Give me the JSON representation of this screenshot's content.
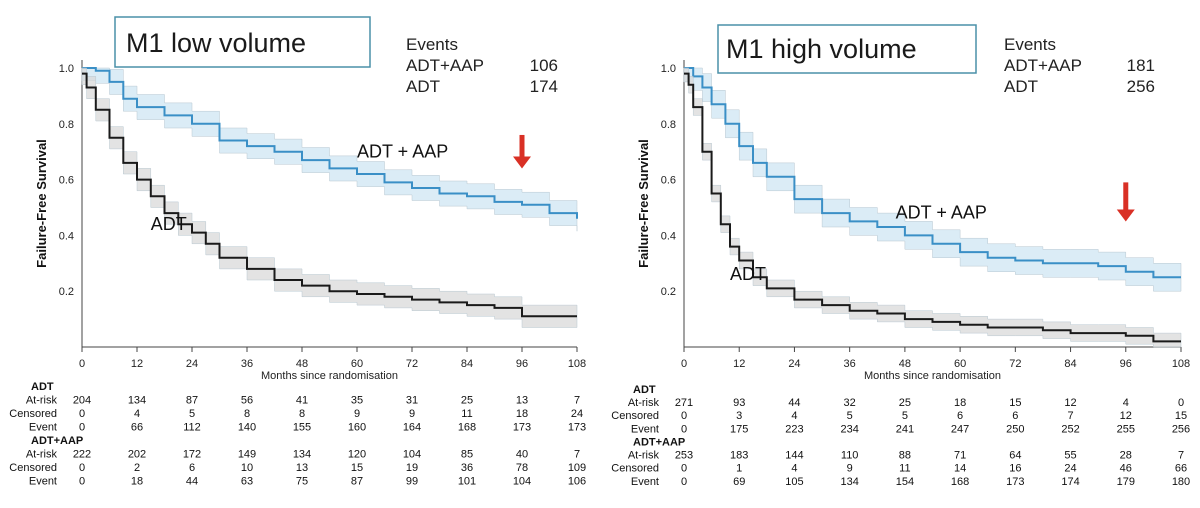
{
  "chart_data": [
    {
      "type": "line",
      "title": "M1 low volume",
      "ylabel": "Failure-Free Survival",
      "xlabel": "Months since randomisation",
      "xlim": [
        0,
        108
      ],
      "ylim": [
        0,
        1.0
      ],
      "xticks": [
        0,
        12,
        24,
        36,
        48,
        60,
        72,
        84,
        96,
        108
      ],
      "yticks": [
        0.2,
        0.4,
        0.6,
        0.8,
        1.0
      ],
      "yticklabels": [
        "0.2",
        "0.4",
        "0.6",
        "0.8",
        "1.0"
      ],
      "events_header": "Events",
      "events": [
        {
          "label": "ADT+AAP",
          "value": "106"
        },
        {
          "label": "ADT",
          "value": "174"
        }
      ],
      "series": [
        {
          "name": "ADT + AAP",
          "color": "#3a8fc6",
          "band_color": "#cfe5f3",
          "x": [
            0,
            3,
            6,
            9,
            12,
            18,
            24,
            30,
            36,
            42,
            48,
            54,
            60,
            66,
            72,
            78,
            84,
            90,
            96,
            102,
            108
          ],
          "y": [
            1.0,
            0.99,
            0.95,
            0.89,
            0.86,
            0.83,
            0.8,
            0.74,
            0.72,
            0.7,
            0.67,
            0.64,
            0.62,
            0.59,
            0.57,
            0.55,
            0.54,
            0.52,
            0.51,
            0.48,
            0.46
          ],
          "band_width": 0.045
        },
        {
          "name": "ADT",
          "color": "#1a1a1a",
          "band_color": "#d9d9d9",
          "x": [
            0,
            1,
            3,
            6,
            9,
            12,
            15,
            18,
            21,
            24,
            27,
            30,
            36,
            42,
            48,
            54,
            60,
            66,
            72,
            78,
            84,
            90,
            96,
            102,
            108
          ],
          "y": [
            0.98,
            0.93,
            0.85,
            0.75,
            0.66,
            0.6,
            0.54,
            0.48,
            0.44,
            0.41,
            0.37,
            0.32,
            0.28,
            0.24,
            0.22,
            0.2,
            0.19,
            0.18,
            0.17,
            0.16,
            0.15,
            0.14,
            0.11,
            0.11,
            0.11
          ],
          "band_width": 0.04
        }
      ],
      "annotations": [
        {
          "text": "ADT + AAP",
          "x": 60,
          "y": 0.68
        },
        {
          "text": "ADT",
          "x": 15,
          "y": 0.42
        }
      ],
      "arrow": {
        "x": 96,
        "y_top": 0.76,
        "y_bottom": 0.64,
        "color": "#d93025"
      },
      "risk_table": {
        "groups": [
          {
            "name": "ADT",
            "rows": [
              {
                "label": "At-risk",
                "values": [
                  "204",
                  "134",
                  "87",
                  "56",
                  "41",
                  "35",
                  "31",
                  "25",
                  "13",
                  "7"
                ]
              },
              {
                "label": "Censored",
                "values": [
                  "0",
                  "4",
                  "5",
                  "8",
                  "8",
                  "9",
                  "9",
                  "11",
                  "18",
                  "24"
                ]
              },
              {
                "label": "Event",
                "values": [
                  "0",
                  "66",
                  "112",
                  "140",
                  "155",
                  "160",
                  "164",
                  "168",
                  "173",
                  "173"
                ]
              }
            ]
          },
          {
            "name": "ADT+AAP",
            "rows": [
              {
                "label": "At-risk",
                "values": [
                  "222",
                  "202",
                  "172",
                  "149",
                  "134",
                  "120",
                  "104",
                  "85",
                  "40",
                  "7"
                ]
              },
              {
                "label": "Censored",
                "values": [
                  "0",
                  "2",
                  "6",
                  "10",
                  "13",
                  "15",
                  "19",
                  "36",
                  "78",
                  "109"
                ]
              },
              {
                "label": "Event",
                "values": [
                  "0",
                  "18",
                  "44",
                  "63",
                  "75",
                  "87",
                  "99",
                  "101",
                  "104",
                  "106"
                ]
              }
            ]
          }
        ]
      }
    },
    {
      "type": "line",
      "title": "M1 high volume",
      "ylabel": "Failure-Free Survival",
      "xlabel": "Months since randomisation",
      "xlim": [
        0,
        108
      ],
      "ylim": [
        0,
        1.0
      ],
      "xticks": [
        0,
        12,
        24,
        36,
        48,
        60,
        72,
        84,
        96,
        108
      ],
      "yticks": [
        0.2,
        0.4,
        0.6,
        0.8,
        1.0
      ],
      "yticklabels": [
        "0.2",
        "0.4",
        "0.6",
        "0.8",
        "1.0"
      ],
      "events_header": "Events",
      "events": [
        {
          "label": "ADT+AAP",
          "value": "181"
        },
        {
          "label": "ADT",
          "value": "256"
        }
      ],
      "series": [
        {
          "name": "ADT + AAP",
          "color": "#3a8fc6",
          "band_color": "#cfe5f3",
          "x": [
            0,
            2,
            4,
            6,
            9,
            12,
            15,
            18,
            24,
            30,
            36,
            42,
            48,
            54,
            60,
            66,
            72,
            78,
            84,
            90,
            96,
            102,
            108
          ],
          "y": [
            1.0,
            0.97,
            0.93,
            0.87,
            0.8,
            0.72,
            0.66,
            0.61,
            0.53,
            0.48,
            0.45,
            0.43,
            0.4,
            0.37,
            0.34,
            0.32,
            0.31,
            0.3,
            0.3,
            0.29,
            0.27,
            0.25,
            0.25
          ],
          "band_width": 0.05
        },
        {
          "name": "ADT",
          "color": "#1a1a1a",
          "band_color": "#d9d9d9",
          "x": [
            0,
            1,
            2,
            4,
            6,
            8,
            10,
            12,
            15,
            18,
            24,
            30,
            36,
            42,
            48,
            54,
            60,
            66,
            72,
            78,
            84,
            90,
            96,
            102,
            108
          ],
          "y": [
            0.98,
            0.94,
            0.86,
            0.7,
            0.55,
            0.44,
            0.36,
            0.31,
            0.25,
            0.21,
            0.17,
            0.15,
            0.13,
            0.12,
            0.1,
            0.09,
            0.08,
            0.07,
            0.07,
            0.06,
            0.05,
            0.05,
            0.04,
            0.02,
            0.02
          ],
          "band_width": 0.03
        }
      ],
      "annotations": [
        {
          "text": "ADT + AAP",
          "x": 46,
          "y": 0.46
        },
        {
          "text": "ADT",
          "x": 10,
          "y": 0.24
        }
      ],
      "arrow": {
        "x": 96,
        "y_top": 0.59,
        "y_bottom": 0.45,
        "color": "#d93025"
      },
      "risk_table": {
        "groups": [
          {
            "name": "ADT",
            "rows": [
              {
                "label": "At-risk",
                "values": [
                  "271",
                  "93",
                  "44",
                  "32",
                  "25",
                  "18",
                  "15",
                  "12",
                  "4",
                  "0"
                ]
              },
              {
                "label": "Censored",
                "values": [
                  "0",
                  "3",
                  "4",
                  "5",
                  "5",
                  "6",
                  "6",
                  "7",
                  "12",
                  "15"
                ]
              },
              {
                "label": "Event",
                "values": [
                  "0",
                  "175",
                  "223",
                  "234",
                  "241",
                  "247",
                  "250",
                  "252",
                  "255",
                  "256"
                ]
              }
            ]
          },
          {
            "name": "ADT+AAP",
            "rows": [
              {
                "label": "At-risk",
                "values": [
                  "253",
                  "183",
                  "144",
                  "110",
                  "88",
                  "71",
                  "64",
                  "55",
                  "28",
                  "7"
                ]
              },
              {
                "label": "Censored",
                "values": [
                  "0",
                  "1",
                  "4",
                  "9",
                  "11",
                  "14",
                  "16",
                  "24",
                  "46",
                  "66"
                ]
              },
              {
                "label": "Event",
                "values": [
                  "0",
                  "69",
                  "105",
                  "134",
                  "154",
                  "168",
                  "173",
                  "174",
                  "179",
                  "180"
                ]
              }
            ]
          }
        ]
      }
    }
  ]
}
